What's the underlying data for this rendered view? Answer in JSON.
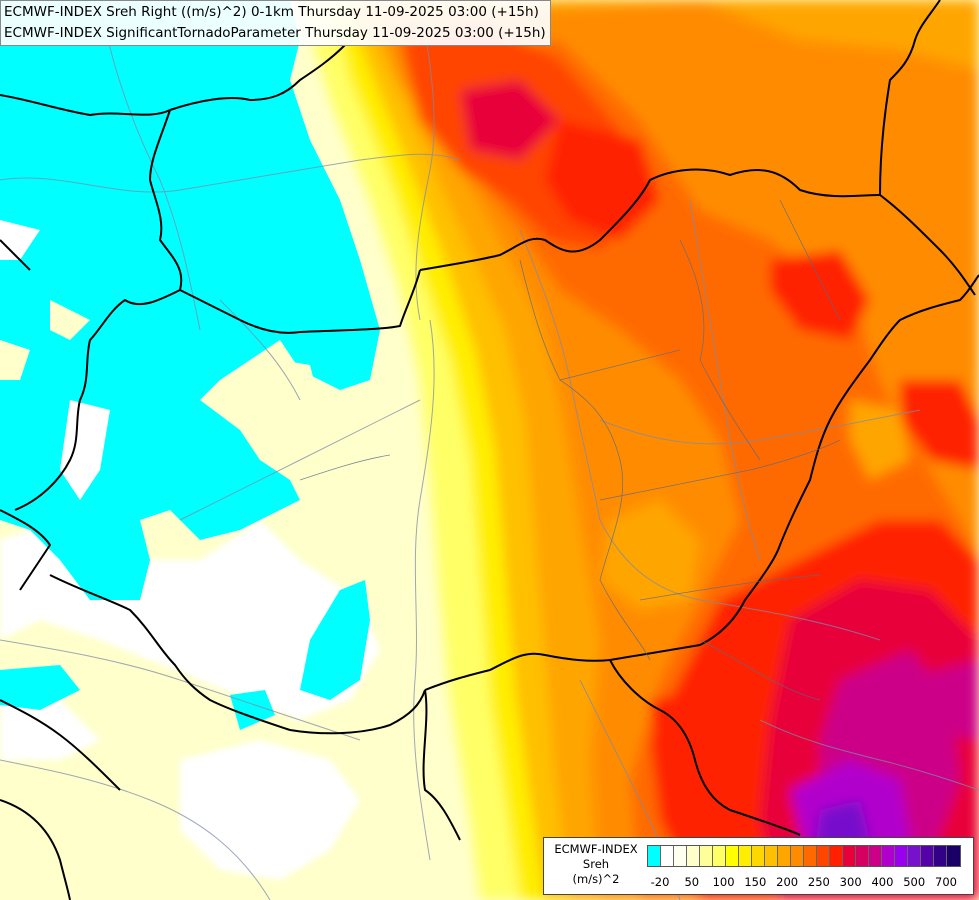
{
  "header": {
    "line1": "ECMWF-INDEX Sreh Right ((m/s)^2) 0-1km Thursday 11-09-2025 03:00 (+15h)",
    "line2": "ECMWF-INDEX SignificantTornadoParameter Thursday 11-09-2025 03:00 (+15h)"
  },
  "legend": {
    "line1": "ECMWF-INDEX",
    "line2": "Sreh",
    "line3": "(m/s)^2",
    "colors": [
      "#00ffff",
      "#ffffff",
      "#fffff0",
      "#ffffcc",
      "#ffff99",
      "#ffff66",
      "#ffff00",
      "#ffee00",
      "#ffd700",
      "#ffc000",
      "#ffa500",
      "#ff8c00",
      "#ff6a00",
      "#ff4500",
      "#ff2000",
      "#e8003a",
      "#d60060",
      "#cc0088",
      "#b200cc",
      "#9900ee",
      "#7711cc",
      "#5500aa",
      "#330088",
      "#1a0066"
    ],
    "ticks": [
      "-20",
      "50",
      "100",
      "150",
      "200",
      "250",
      "300",
      "400",
      "500",
      "700"
    ]
  }
}
